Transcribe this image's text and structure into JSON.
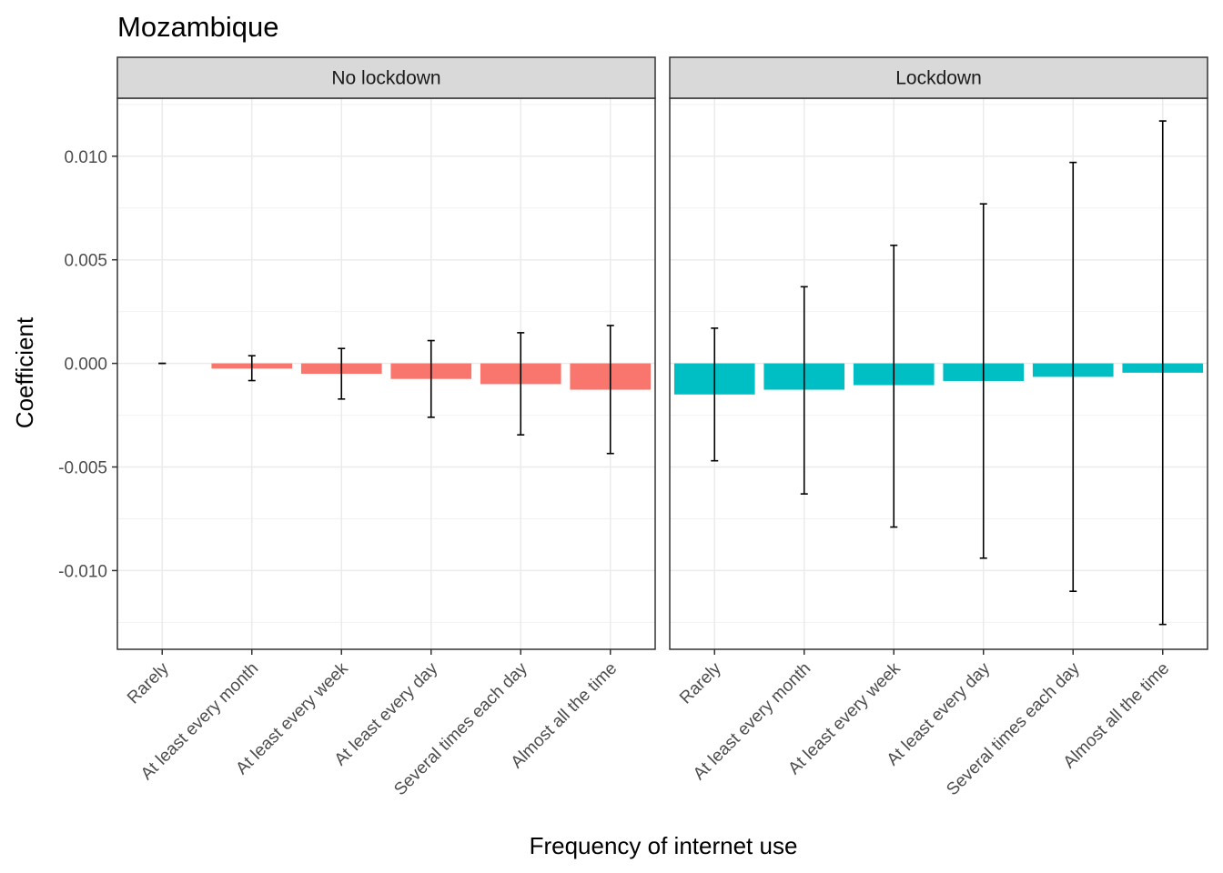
{
  "chart_data": {
    "type": "bar",
    "title": "Mozambique",
    "xlabel": "Frequency of internet use",
    "ylabel": "Coefficient",
    "ylim": [
      -0.0138,
      0.0128
    ],
    "yticks": [
      -0.01,
      -0.005,
      0.0,
      0.005,
      0.01
    ],
    "ytick_labels": [
      "-0.010",
      "-0.005",
      "0.000",
      "0.005",
      "0.010"
    ],
    "grid": true,
    "legend": "none",
    "categories": [
      "Rarely",
      "At least every month",
      "At least every week",
      "At least every day",
      "Several times each day",
      "Almost all the time"
    ],
    "panels": [
      {
        "label": "No lockdown",
        "color": "#F8766D",
        "values": [
          0.0,
          -0.00025,
          -0.0005,
          -0.00075,
          -0.001,
          -0.00127
        ],
        "ci_low": [
          0.0,
          -0.00083,
          -0.00172,
          -0.0026,
          -0.00345,
          -0.00435
        ],
        "ci_high": [
          0.0,
          0.00037,
          0.00072,
          0.0011,
          0.00148,
          0.00183
        ]
      },
      {
        "label": "Lockdown",
        "color": "#00BFC4",
        "values": [
          -0.0015,
          -0.00127,
          -0.00105,
          -0.00085,
          -0.00065,
          -0.00045
        ],
        "ci_low": [
          -0.0047,
          -0.0063,
          -0.0079,
          -0.0094,
          -0.011,
          -0.0126
        ],
        "ci_high": [
          0.0017,
          0.0037,
          0.0057,
          0.0077,
          0.0097,
          0.0117
        ]
      }
    ]
  }
}
